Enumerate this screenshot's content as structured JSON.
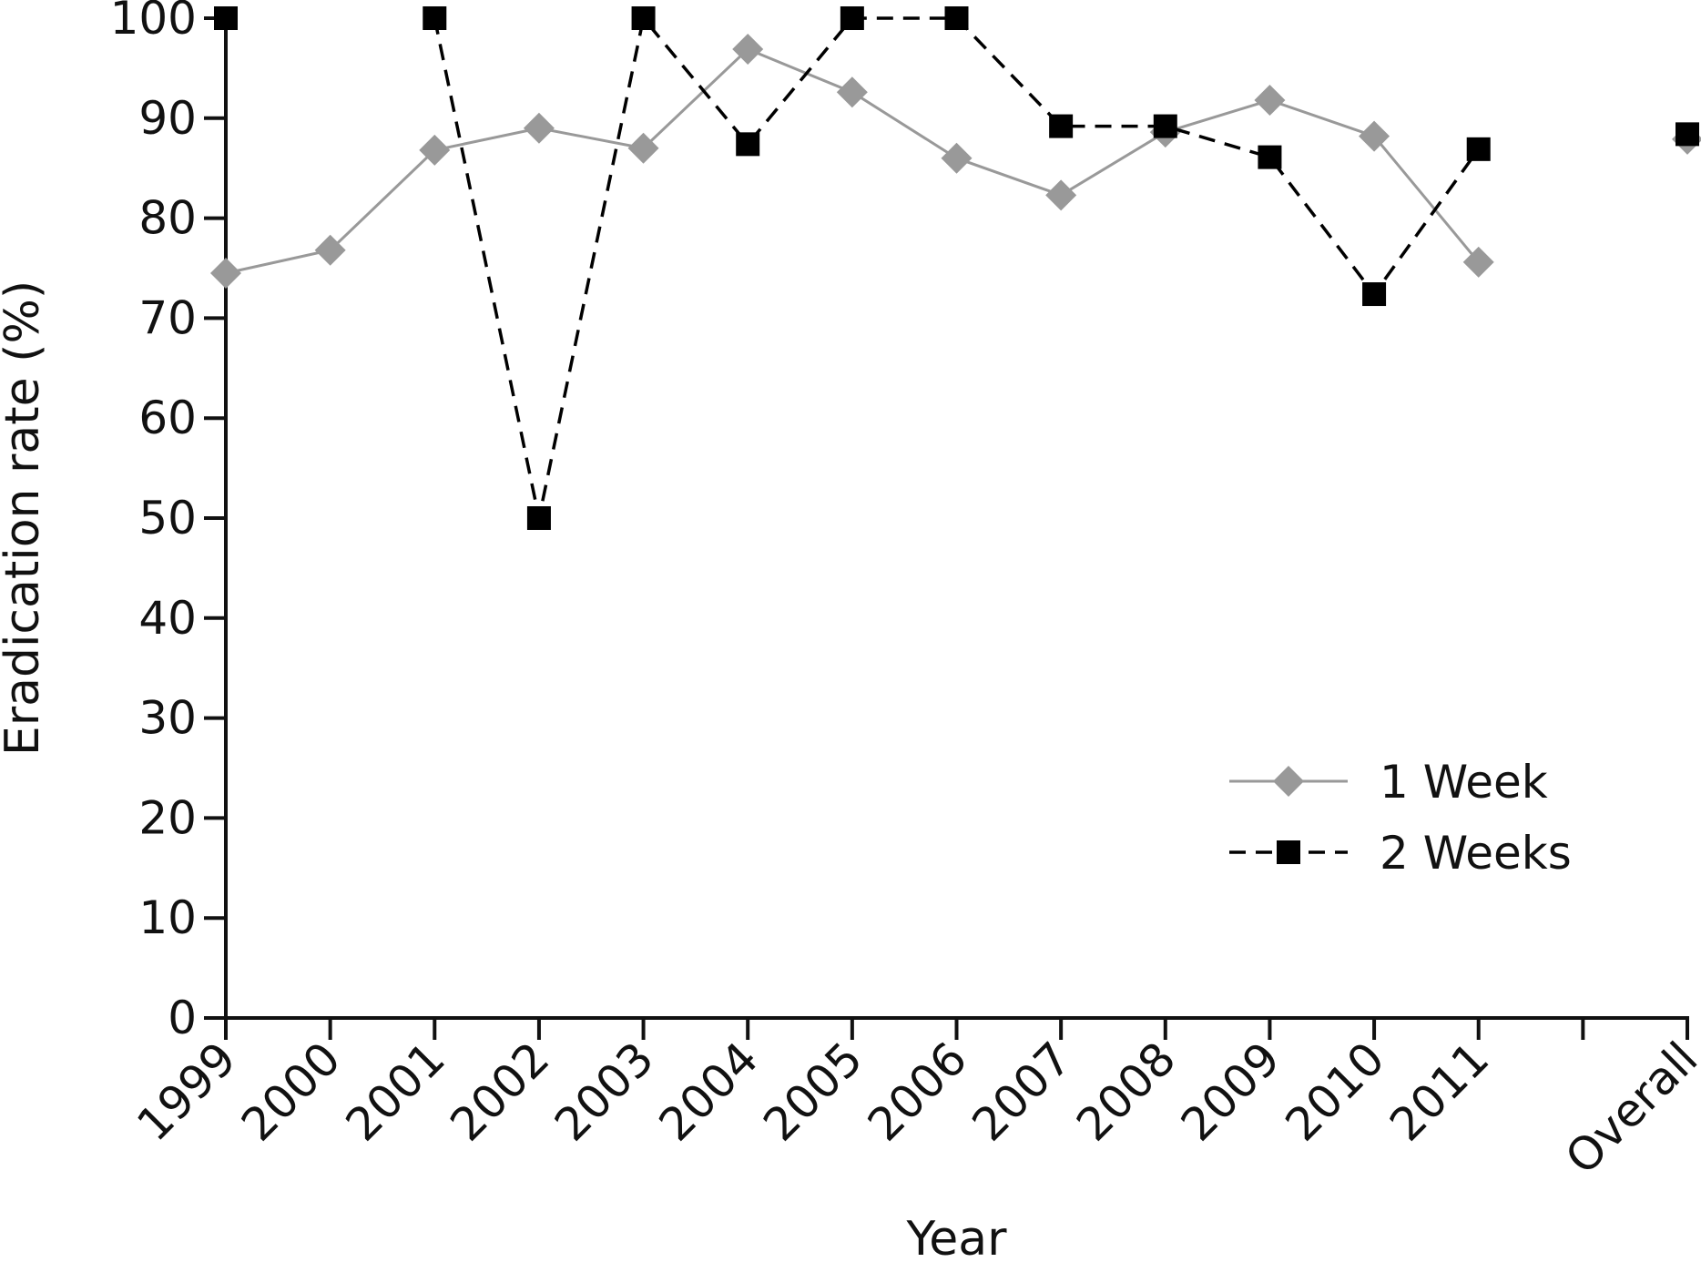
{
  "chart_data": {
    "type": "line",
    "xlabel": "Year",
    "ylabel": "Eradication rate (%)",
    "categories": [
      "1999",
      "2000",
      "2001",
      "2002",
      "2003",
      "2004",
      "2005",
      "2006",
      "2007",
      "2008",
      "2009",
      "2010",
      "2011",
      "",
      "Overall"
    ],
    "ylim": [
      0,
      100
    ],
    "yticks": [
      "0",
      "10",
      "20",
      "30",
      "40",
      "50",
      "60",
      "70",
      "80",
      "90",
      "100"
    ],
    "grid": false,
    "legend_position": "bottom-right",
    "series": [
      {
        "name": "1 Week",
        "marker": "diamond",
        "line": "solid",
        "color": "#999999",
        "values": [
          74.5,
          76.8,
          86.8,
          89.0,
          87.0,
          96.9,
          92.6,
          86.0,
          82.3,
          88.6,
          91.8,
          88.2,
          75.6,
          null,
          87.9
        ]
      },
      {
        "name": "2 Weeks",
        "marker": "square",
        "line": "dashed",
        "color": "#000000",
        "values": [
          100,
          null,
          100,
          50,
          100,
          87.4,
          100,
          100,
          89.2,
          89.2,
          86.1,
          72.4,
          86.9,
          null,
          88.4
        ]
      }
    ]
  }
}
